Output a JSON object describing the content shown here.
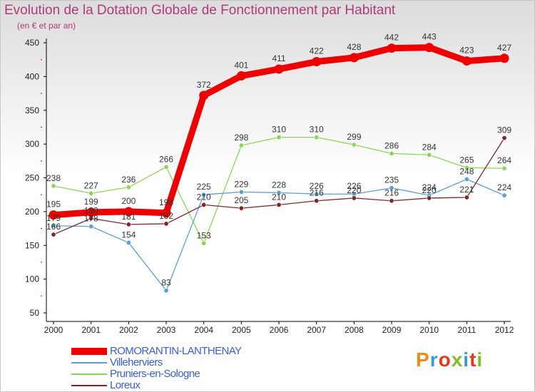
{
  "header": {
    "title": "Evolution de la Dotation Globale de Fonctionnement par Habitant",
    "subtitle": "(en € et par an)"
  },
  "brand": {
    "text": "Proxiti",
    "colors": [
      "#f08a1c",
      "#3a9ad9",
      "#e2391d",
      "#7cbf2e",
      "#3a9ad9",
      "#e2391d",
      "#7cbf2e"
    ]
  },
  "chart_data": {
    "type": "line",
    "title": "Evolution de la Dotation Globale de Fonctionnement par Habitant",
    "subtitle": "(en € et par an)",
    "xlabel": "",
    "ylabel": "",
    "categories": [
      "2000",
      "2001",
      "2002",
      "2003",
      "2004",
      "2005",
      "2006",
      "2007",
      "2008",
      "2009",
      "2010",
      "2011",
      "2012"
    ],
    "ylim": [
      50,
      450
    ],
    "yticks": [
      50,
      100,
      150,
      200,
      250,
      300,
      350,
      400,
      450
    ],
    "grid": false,
    "legend_position": "bottom-left",
    "series": [
      {
        "name": "ROMORANTIN-LANTHENAY",
        "color": "#ee0000",
        "values": [
          195,
          199,
          200,
          198,
          372,
          401,
          411,
          422,
          428,
          442,
          443,
          423,
          427
        ],
        "labels": [
          "195",
          "199",
          "200",
          "198",
          "372",
          "401",
          "411",
          "422",
          "428",
          "442",
          "443",
          "423",
          "427"
        ]
      },
      {
        "name": "Villeherviers",
        "color": "#5d9fd0",
        "values": [
          179,
          178,
          154,
          83,
          225,
          229,
          228,
          226,
          226,
          235,
          224,
          248,
          224
        ],
        "labels": [
          "179",
          "178",
          "154",
          "83",
          "225",
          "229",
          "228",
          "226",
          "226",
          "235",
          "224",
          "248",
          "224"
        ]
      },
      {
        "name": "Pruniers-en-Sologne",
        "color": "#8fd45a",
        "values": [
          238,
          227,
          236,
          266,
          153,
          298,
          310,
          310,
          299,
          286,
          284,
          265,
          264
        ],
        "labels": [
          "238",
          "227",
          "236",
          "266",
          "153",
          "298",
          "310",
          "310",
          "299",
          "286",
          "284",
          "265",
          "264"
        ]
      },
      {
        "name": "Loreux",
        "color": "#7a2a2a",
        "values": [
          166,
          190,
          181,
          182,
          210,
          205,
          210,
          216,
          220,
          216,
          220,
          221,
          309
        ],
        "labels": [
          "166",
          "190",
          "181",
          "182",
          "210",
          "205",
          "210",
          "216",
          "220",
          "216",
          "220",
          "221",
          "309"
        ]
      }
    ]
  }
}
